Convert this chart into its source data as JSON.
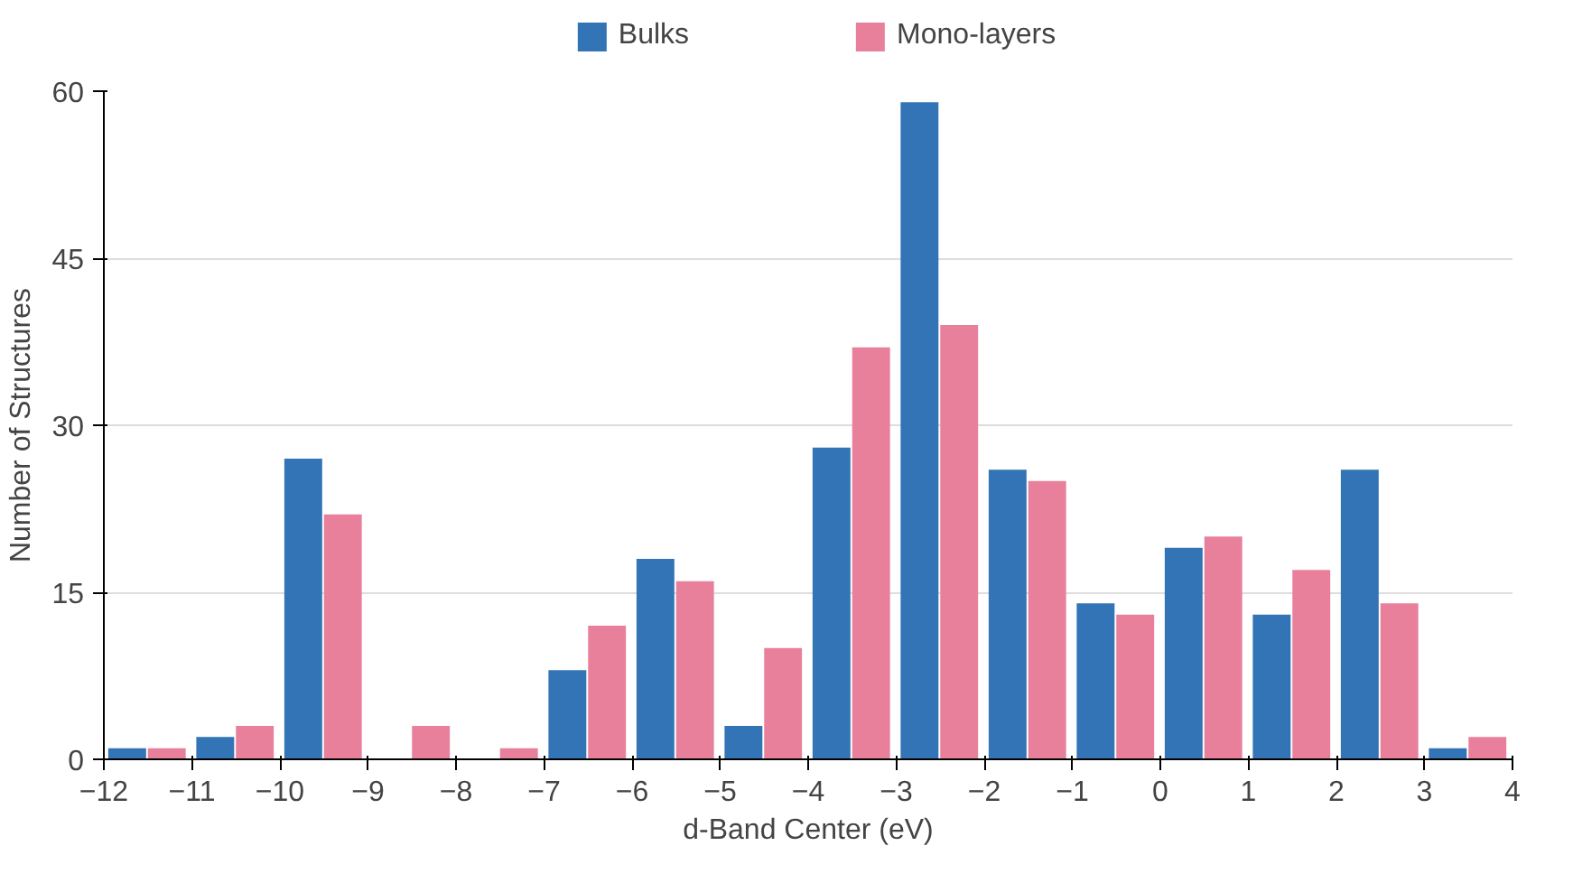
{
  "chart_data": {
    "type": "histogram",
    "xlabel": "d-Band Center (eV)",
    "ylabel": "Number of Structures",
    "bins": [
      -12,
      -11,
      -10,
      -9,
      -8,
      -7,
      -6,
      -5,
      -4,
      -3,
      -2,
      -1,
      0,
      1,
      2,
      3,
      4
    ],
    "series": [
      {
        "name": "Bulks",
        "color": "#3274b5",
        "values": [
          1,
          2,
          27,
          0,
          0,
          8,
          18,
          3,
          28,
          59,
          26,
          14,
          19,
          13,
          26,
          1
        ]
      },
      {
        "name": "Mono-layers",
        "color": "#e8809c",
        "values": [
          1,
          3,
          22,
          3,
          1,
          12,
          16,
          10,
          37,
          39,
          25,
          13,
          20,
          17,
          14,
          2
        ]
      }
    ],
    "xlim": [
      -12,
      4
    ],
    "xticks": [
      -12,
      -11,
      -10,
      -9,
      -8,
      -7,
      -6,
      -5,
      -4,
      -3,
      -2,
      -1,
      0,
      1,
      2,
      3,
      4
    ],
    "ylim": [
      0,
      60
    ],
    "yticks": [
      0,
      15,
      30,
      45,
      60
    ],
    "grid": "y",
    "legend": "top"
  }
}
